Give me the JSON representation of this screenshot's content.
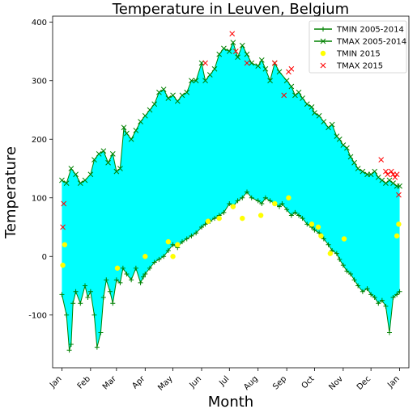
{
  "chart_data": {
    "type": "line",
    "title": "Temperature in Leuven, Belgium",
    "xlabel": "Month",
    "ylabel": "Temperature",
    "ylim": [
      -190,
      410
    ],
    "xlim": [
      -10,
      375
    ],
    "y_ticks": [
      -100,
      0,
      100,
      200,
      300,
      400
    ],
    "x_ticks": [
      {
        "day": 0,
        "label": "Jan"
      },
      {
        "day": 31,
        "label": "Feb"
      },
      {
        "day": 59,
        "label": "Mar"
      },
      {
        "day": 90,
        "label": "Apr"
      },
      {
        "day": 120,
        "label": "May"
      },
      {
        "day": 151,
        "label": "Jun"
      },
      {
        "day": 181,
        "label": "Jul"
      },
      {
        "day": 212,
        "label": "Aug"
      },
      {
        "day": 243,
        "label": "Sep"
      },
      {
        "day": 273,
        "label": "Oct"
      },
      {
        "day": 304,
        "label": "Nov"
      },
      {
        "day": 334,
        "label": "Dec"
      },
      {
        "day": 365,
        "label": "Jan"
      }
    ],
    "legend_position": "top-right",
    "fill_between_color": "#00ffff",
    "series": [
      {
        "name": "TMIN 2005-2014",
        "style": "line with + markers",
        "color": "#008000",
        "x": [
          0,
          5,
          8,
          10,
          12,
          15,
          20,
          25,
          28,
          31,
          35,
          38,
          42,
          45,
          48,
          52,
          55,
          59,
          63,
          66,
          70,
          75,
          80,
          85,
          88,
          90,
          95,
          100,
          105,
          110,
          115,
          120,
          125,
          130,
          135,
          140,
          145,
          151,
          155,
          160,
          165,
          170,
          175,
          181,
          185,
          190,
          195,
          200,
          205,
          212,
          216,
          220,
          225,
          230,
          235,
          238,
          243,
          248,
          252,
          256,
          260,
          265,
          270,
          273,
          278,
          283,
          288,
          292,
          297,
          300,
          304,
          308,
          312,
          316,
          320,
          325,
          330,
          334,
          338,
          342,
          346,
          350,
          354,
          358,
          362,
          365
        ],
        "values": [
          -65,
          -100,
          -160,
          -150,
          -80,
          -60,
          -80,
          -50,
          -70,
          -60,
          -100,
          -155,
          -130,
          -70,
          -40,
          -60,
          -80,
          -40,
          -45,
          -20,
          -30,
          -40,
          -20,
          -45,
          -35,
          -30,
          -20,
          -10,
          -5,
          0,
          10,
          20,
          15,
          25,
          30,
          35,
          40,
          50,
          55,
          60,
          65,
          70,
          75,
          90,
          85,
          95,
          100,
          110,
          100,
          95,
          90,
          100,
          95,
          90,
          85,
          90,
          80,
          70,
          75,
          70,
          65,
          55,
          50,
          45,
          40,
          30,
          20,
          10,
          5,
          -5,
          -15,
          -25,
          -30,
          -40,
          -50,
          -60,
          -55,
          -65,
          -70,
          -80,
          -75,
          -85,
          -130,
          -70,
          -65,
          -60
        ]
      },
      {
        "name": "TMAX 2005-2014",
        "style": "line with x markers",
        "color": "#008000",
        "x": [
          0,
          5,
          10,
          15,
          20,
          25,
          31,
          35,
          40,
          45,
          50,
          55,
          59,
          63,
          67,
          70,
          75,
          80,
          85,
          90,
          95,
          100,
          105,
          110,
          115,
          120,
          125,
          130,
          135,
          140,
          145,
          151,
          155,
          160,
          165,
          170,
          175,
          181,
          185,
          190,
          195,
          200,
          205,
          212,
          216,
          220,
          225,
          230,
          235,
          243,
          248,
          252,
          256,
          260,
          265,
          270,
          273,
          278,
          283,
          288,
          292,
          297,
          300,
          304,
          308,
          312,
          316,
          320,
          325,
          330,
          334,
          338,
          342,
          346,
          350,
          354,
          358,
          362,
          365
        ],
        "values": [
          130,
          125,
          150,
          140,
          125,
          130,
          140,
          165,
          175,
          180,
          160,
          175,
          145,
          150,
          220,
          210,
          200,
          215,
          230,
          240,
          250,
          260,
          280,
          285,
          270,
          275,
          265,
          275,
          280,
          300,
          300,
          330,
          300,
          310,
          320,
          345,
          355,
          350,
          365,
          340,
          360,
          345,
          330,
          325,
          335,
          320,
          300,
          330,
          315,
          300,
          290,
          275,
          280,
          270,
          260,
          255,
          245,
          240,
          230,
          220,
          225,
          205,
          200,
          190,
          185,
          170,
          160,
          150,
          145,
          140,
          140,
          145,
          135,
          130,
          125,
          130,
          125,
          120,
          120
        ]
      },
      {
        "name": "TMIN 2015",
        "style": "yellow circle markers",
        "color": "#ffff00",
        "x": [
          1,
          3,
          60,
          90,
          115,
          120,
          125,
          158,
          170,
          185,
          195,
          215,
          230,
          245,
          270,
          277,
          280,
          290,
          305,
          362,
          364
        ],
        "values": [
          -15,
          20,
          -20,
          0,
          25,
          0,
          20,
          60,
          65,
          85,
          65,
          70,
          90,
          100,
          55,
          50,
          35,
          5,
          30,
          35,
          55
        ]
      },
      {
        "name": "TMAX 2015",
        "style": "red x markers",
        "color": "#ff0000",
        "x": [
          1,
          2,
          155,
          184,
          188,
          200,
          230,
          240,
          245,
          248,
          345,
          350,
          352,
          356,
          358,
          360,
          362,
          364
        ],
        "values": [
          50,
          90,
          330,
          380,
          350,
          330,
          330,
          275,
          315,
          320,
          165,
          145,
          140,
          145,
          140,
          135,
          140,
          105
        ]
      }
    ]
  }
}
